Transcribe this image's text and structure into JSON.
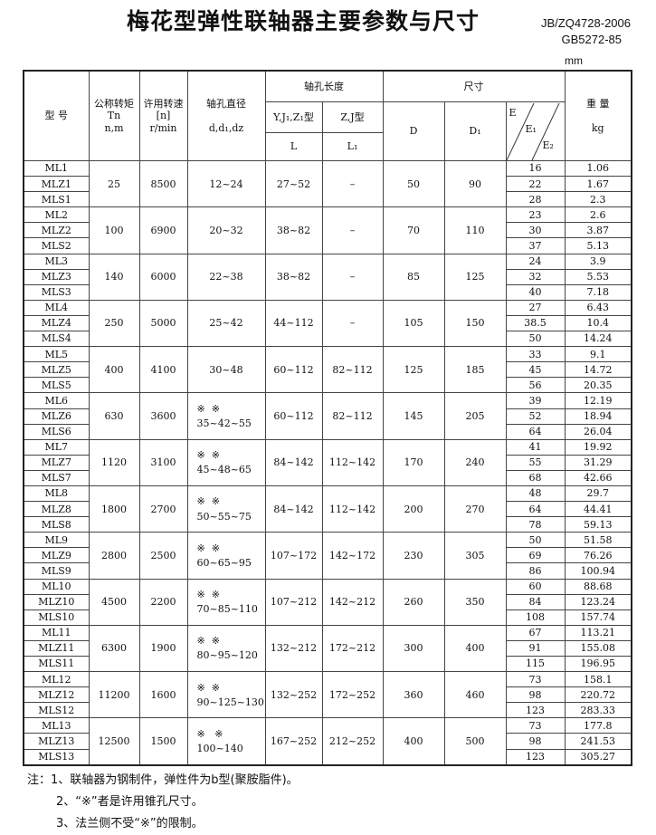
{
  "title": "梅花型弹性联轴器主要参数与尺寸",
  "standards": [
    "JB/ZQ4728-2006",
    "GB5272-85"
  ],
  "unit": "mm",
  "header": {
    "model": "型 号",
    "torque": [
      "公称转矩",
      "Tn",
      "n,m"
    ],
    "speed": [
      "许用转速",
      "[n]",
      "r/min"
    ],
    "bore": [
      "轴孔直径",
      "d,d₁,dz"
    ],
    "bore_length": "轴孔长度",
    "type_yj": "Y,J₁,Z₁型",
    "type_zj": "Z,J型",
    "L": "L",
    "L1": "L₁",
    "dims": "尺寸",
    "D": "D",
    "D1": "D₁",
    "E": "E",
    "E1": "E₁",
    "E2": "E₂",
    "weight": [
      "重 量",
      "kg"
    ]
  },
  "groups": [
    {
      "models": [
        "ML1",
        "MLZ1",
        "MLS1"
      ],
      "torque": "25",
      "speed": "8500",
      "marks": "",
      "bore": "12~24",
      "L": "27~52",
      "L1": "–",
      "D": "50",
      "D1": "90",
      "E": [
        "16",
        "22",
        "28"
      ],
      "weight": [
        "1.06",
        "1.67",
        "2.3"
      ]
    },
    {
      "models": [
        "ML2",
        "MLZ2",
        "MLS2"
      ],
      "torque": "100",
      "speed": "6900",
      "marks": "",
      "bore": "20~32",
      "L": "38~82",
      "L1": "–",
      "D": "70",
      "D1": "110",
      "E": [
        "23",
        "30",
        "37"
      ],
      "weight": [
        "2.6",
        "3.87",
        "5.13"
      ]
    },
    {
      "models": [
        "ML3",
        "MLZ3",
        "MLS3"
      ],
      "torque": "140",
      "speed": "6000",
      "marks": "",
      "bore": "22~38",
      "L": "38~82",
      "L1": "–",
      "D": "85",
      "D1": "125",
      "E": [
        "24",
        "32",
        "40"
      ],
      "weight": [
        "3.9",
        "5.53",
        "7.18"
      ]
    },
    {
      "models": [
        "ML4",
        "MLZ4",
        "MLS4"
      ],
      "torque": "250",
      "speed": "5000",
      "marks": "",
      "bore": "25~42",
      "L": "44~112",
      "L1": "–",
      "D": "105",
      "D1": "150",
      "E": [
        "27",
        "38.5",
        "50"
      ],
      "weight": [
        "6.43",
        "10.4",
        "14.24"
      ]
    },
    {
      "models": [
        "ML5",
        "MLZ5",
        "MLS5"
      ],
      "torque": "400",
      "speed": "4100",
      "marks": "",
      "bore": "30~48",
      "L": "60~112",
      "L1": "82~112",
      "D": "125",
      "D1": "185",
      "E": [
        "33",
        "45",
        "56"
      ],
      "weight": [
        "9.1",
        "14.72",
        "20.35"
      ]
    },
    {
      "models": [
        "ML6",
        "MLZ6",
        "MLS6"
      ],
      "torque": "630",
      "speed": "3600",
      "marks": "※  ※",
      "bore": "35~42~55",
      "L": "60~112",
      "L1": "82~112",
      "D": "145",
      "D1": "205",
      "E": [
        "39",
        "52",
        "64"
      ],
      "weight": [
        "12.19",
        "18.94",
        "26.04"
      ]
    },
    {
      "models": [
        "ML7",
        "MLZ7",
        "MLS7"
      ],
      "torque": "1120",
      "speed": "3100",
      "marks": "※  ※",
      "bore": "45~48~65",
      "L": "84~142",
      "L1": "112~142",
      "D": "170",
      "D1": "240",
      "E": [
        "41",
        "55",
        "68"
      ],
      "weight": [
        "19.92",
        "31.29",
        "42.66"
      ]
    },
    {
      "models": [
        "ML8",
        "MLZ8",
        "MLS8"
      ],
      "torque": "1800",
      "speed": "2700",
      "marks": "※  ※",
      "bore": "50~55~75",
      "L": "84~142",
      "L1": "112~142",
      "D": "200",
      "D1": "270",
      "E": [
        "48",
        "64",
        "78"
      ],
      "weight": [
        "29.7",
        "44.41",
        "59.13"
      ]
    },
    {
      "models": [
        "ML9",
        "MLZ9",
        "MLS9"
      ],
      "torque": "2800",
      "speed": "2500",
      "marks": "※  ※",
      "bore": "60~65~95",
      "L": "107~172",
      "L1": "142~172",
      "D": "230",
      "D1": "305",
      "E": [
        "50",
        "69",
        "86"
      ],
      "weight": [
        "51.58",
        "76.26",
        "100.94"
      ]
    },
    {
      "models": [
        "ML10",
        "MLZ10",
        "MLS10"
      ],
      "torque": "4500",
      "speed": "2200",
      "marks": "※  ※",
      "bore": "70~85~110",
      "L": "107~212",
      "L1": "142~212",
      "D": "260",
      "D1": "350",
      "E": [
        "60",
        "84",
        "108"
      ],
      "weight": [
        "88.68",
        "123.24",
        "157.74"
      ]
    },
    {
      "models": [
        "ML11",
        "MLZ11",
        "MLS11"
      ],
      "torque": "6300",
      "speed": "1900",
      "marks": "※  ※",
      "bore": "80~95~120",
      "L": "132~212",
      "L1": "172~212",
      "D": "300",
      "D1": "400",
      "E": [
        "67",
        "91",
        "115"
      ],
      "weight": [
        "113.21",
        "155.08",
        "196.95"
      ]
    },
    {
      "models": [
        "ML12",
        "MLZ12",
        "MLS12"
      ],
      "torque": "11200",
      "speed": "1600",
      "marks": "※  ※",
      "bore": "90~125~130",
      "L": "132~252",
      "L1": "172~252",
      "D": "360",
      "D1": "460",
      "E": [
        "73",
        "98",
        "123"
      ],
      "weight": [
        "158.1",
        "220.72",
        "283.33"
      ]
    },
    {
      "models": [
        "ML13",
        "MLZ13",
        "MLS13"
      ],
      "torque": "12500",
      "speed": "1500",
      "marks": "※   ※",
      "bore": "100~140",
      "L": "167~252",
      "L1": "212~252",
      "D": "400",
      "D1": "500",
      "E": [
        "73",
        "98",
        "123"
      ],
      "weight": [
        "177.8",
        "241.53",
        "305.27"
      ]
    }
  ],
  "notes": [
    "注：1、联轴器为钢制件，弹性件为b型(聚胺脂件)。",
    "2、“※”者是许用锥孔尺寸。",
    "3、法兰侧不受“※”的限制。"
  ]
}
